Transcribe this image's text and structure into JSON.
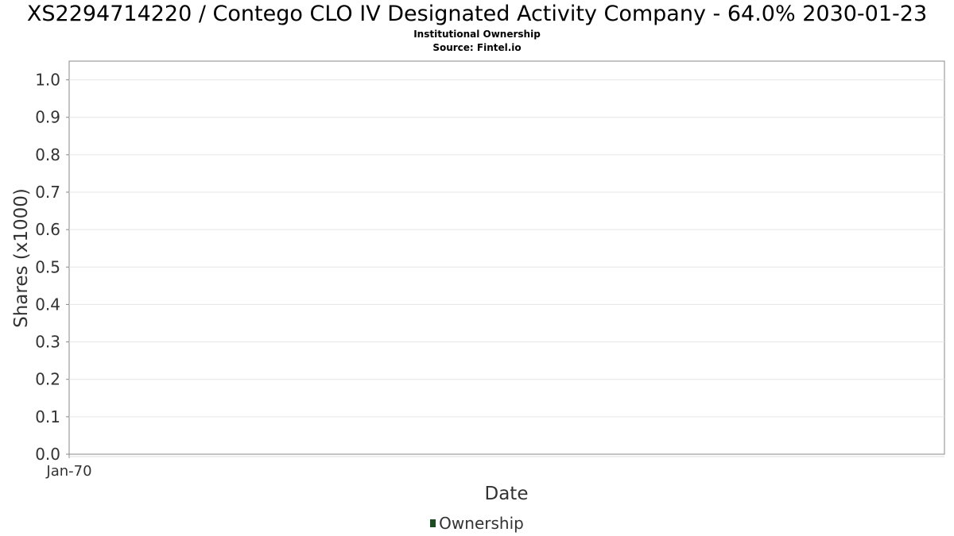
{
  "chart_data": {
    "type": "bar",
    "title": "XS2294714220 / Contego CLO IV Designated Activity Company - 64.0% 2030-01-23",
    "subtitle": "Institutional Ownership",
    "source": "Source: Fintel.io",
    "xlabel": "Date",
    "ylabel": "Shares (x1000)",
    "ylim": [
      0,
      1.05
    ],
    "y_ticks": [
      "0.0",
      "0.1",
      "0.2",
      "0.3",
      "0.4",
      "0.5",
      "0.6",
      "0.7",
      "0.8",
      "0.9",
      "1.0"
    ],
    "x_ticks": [
      "Jan-70"
    ],
    "grid": true,
    "legend_position": "bottom-center",
    "series": [
      {
        "name": "Ownership",
        "color": "#1e4d23",
        "values": []
      }
    ]
  }
}
